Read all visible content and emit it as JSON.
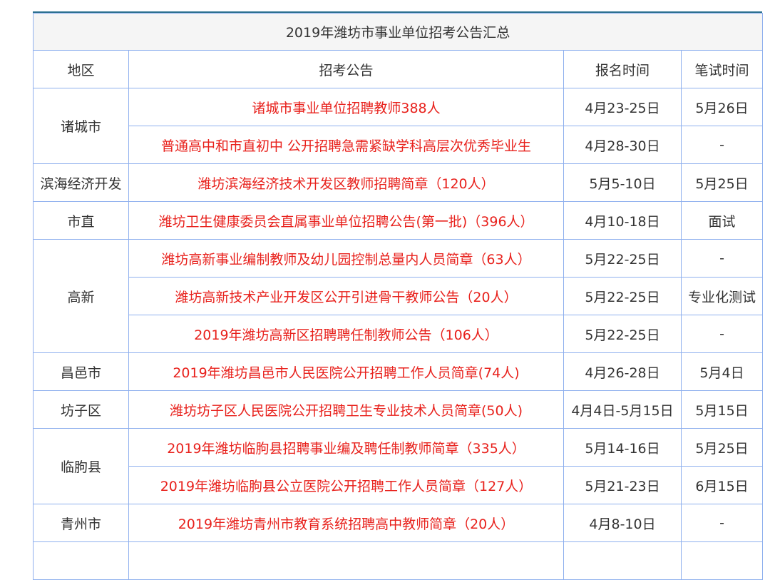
{
  "title": "2019年潍坊市事业单位招考公告汇总",
  "headers": [
    "地区",
    "招考公告",
    "报名时间",
    "笔试时间"
  ],
  "colors": {
    "link_text": "#e8211c",
    "border": "#8fb0ee",
    "title_bg": "#f5f5f5"
  },
  "rows": [
    {
      "region": "诸城市",
      "notice": "诸城市事业单位招聘教师388人",
      "signup": "4月23-25日",
      "exam": "5月26日"
    },
    {
      "notice": "普通高中和市直初中 公开招聘急需紧缺学科高层次优秀毕业生",
      "signup": "4月28-30日",
      "exam": "-"
    },
    {
      "region": "滨海经济开发",
      "notice": "潍坊滨海经济技术开发区教师招聘简章（120人）",
      "signup": "5月5-10日",
      "exam": "5月25日"
    },
    {
      "region": "市直",
      "notice": "潍坊卫生健康委员会直属事业单位招聘公告(第一批)（396人）",
      "signup": "4月10-18日",
      "exam": "面试"
    },
    {
      "region": "高新",
      "notice": "潍坊高新事业编制教师及幼儿园控制总量内人员简章（63人）",
      "signup": "5月22-25日",
      "exam": "-"
    },
    {
      "notice": "潍坊高新技术产业开发区公开引进骨干教师公告（20人）",
      "signup": "5月22-25日",
      "exam": "专业化测试"
    },
    {
      "notice": "2019年潍坊高新区招聘聘任制教师公告（106人）",
      "signup": "5月22-25日",
      "exam": "-"
    },
    {
      "region": "昌邑市",
      "notice": "2019年潍坊昌邑市人民医院公开招聘工作人员简章(74人)",
      "signup": "4月26-28日",
      "exam": "5月4日"
    },
    {
      "region": "坊子区",
      "notice": "潍坊坊子区人民医院公开招聘卫生专业技术人员简章(50人)",
      "signup": "4月4日-5月15日",
      "exam": "5月15日"
    },
    {
      "region": "临朐县",
      "notice": "2019年潍坊临朐县招聘事业编及聘任制教师简章（335人）",
      "signup": "5月14-16日",
      "exam": "5月25日"
    },
    {
      "notice": "2019年潍坊临朐县公立医院公开招聘工作人员简章（127人）",
      "signup": "5月21-23日",
      "exam": "6月15日"
    },
    {
      "region": "青州市",
      "notice": "2019年潍坊青州市教育系统招聘高中教师简章（20人）",
      "signup": "4月8-10日",
      "exam": "-"
    }
  ]
}
